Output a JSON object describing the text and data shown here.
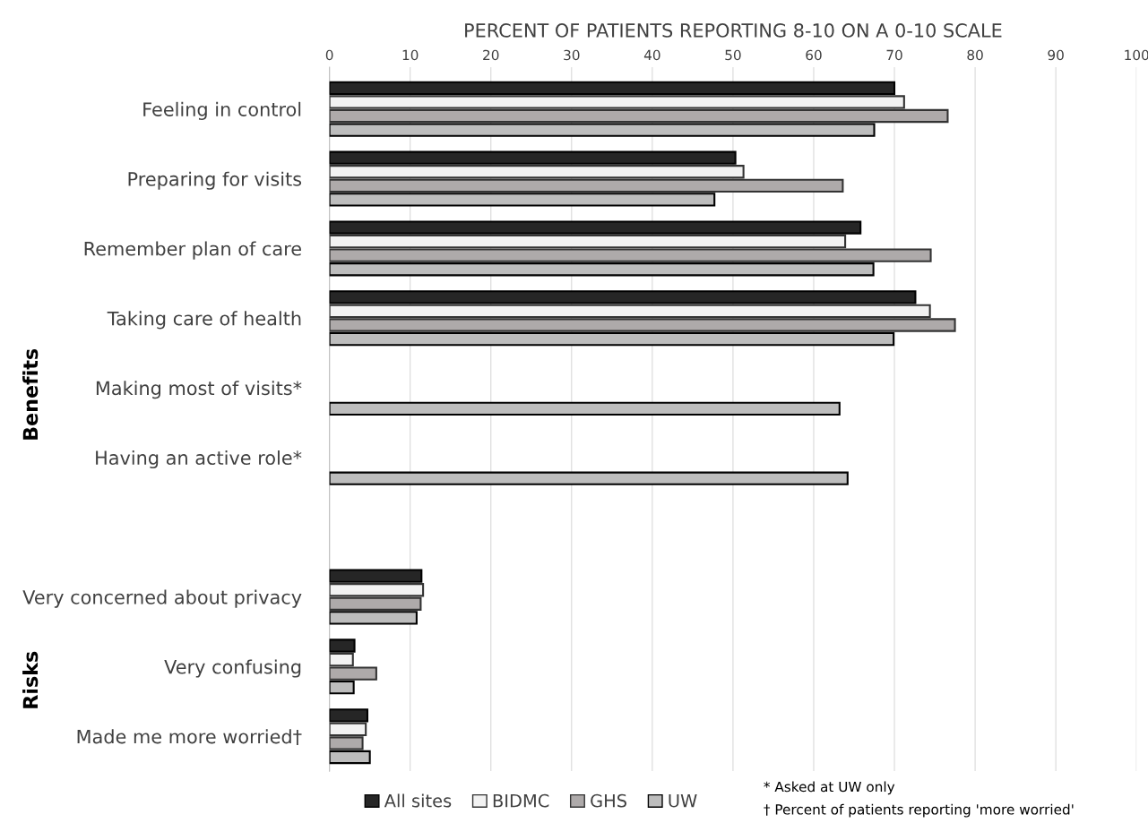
{
  "chart_data": {
    "type": "bar",
    "orientation": "horizontal",
    "xlabel": "PERCENT OF PATIENTS REPORTING 8-10 ON A 0-10 SCALE",
    "categories": [
      "Feeling in control",
      "Preparing for visits",
      "Remember plan of care",
      "Taking care of health",
      "Making most of visits*",
      "Having an active role*",
      null,
      "Very concerned about privacy",
      "Very confusing",
      "Made me more worried†"
    ],
    "series": [
      {
        "name": "All sites",
        "color": "#262626",
        "values": [
          70.0,
          50.3,
          65.8,
          72.6,
          null,
          null,
          null,
          11.4,
          3.1,
          4.7
        ]
      },
      {
        "name": "BIDMC",
        "color": "#f2f2f2",
        "values": [
          71.2,
          51.3,
          63.9,
          74.4,
          null,
          null,
          null,
          11.6,
          2.9,
          4.5
        ]
      },
      {
        "name": "GHS",
        "color": "#aeaaaa",
        "values": [
          76.6,
          63.6,
          74.5,
          77.5,
          null,
          null,
          null,
          11.3,
          5.8,
          4.1
        ]
      },
      {
        "name": "UW",
        "color": "#bdbdbd",
        "values": [
          67.5,
          47.7,
          67.4,
          69.9,
          63.2,
          64.2,
          null,
          10.8,
          3.0,
          5.0
        ]
      }
    ],
    "xlim": [
      0,
      100
    ],
    "xticks": [
      0,
      10,
      20,
      30,
      40,
      50,
      60,
      70,
      80,
      90,
      100
    ],
    "grid": "x",
    "legend": "bottom",
    "annotations": [
      "Benefits",
      "Risks",
      "* Asked at UW only",
      "† Percent of patients reporting 'more worried'"
    ]
  }
}
